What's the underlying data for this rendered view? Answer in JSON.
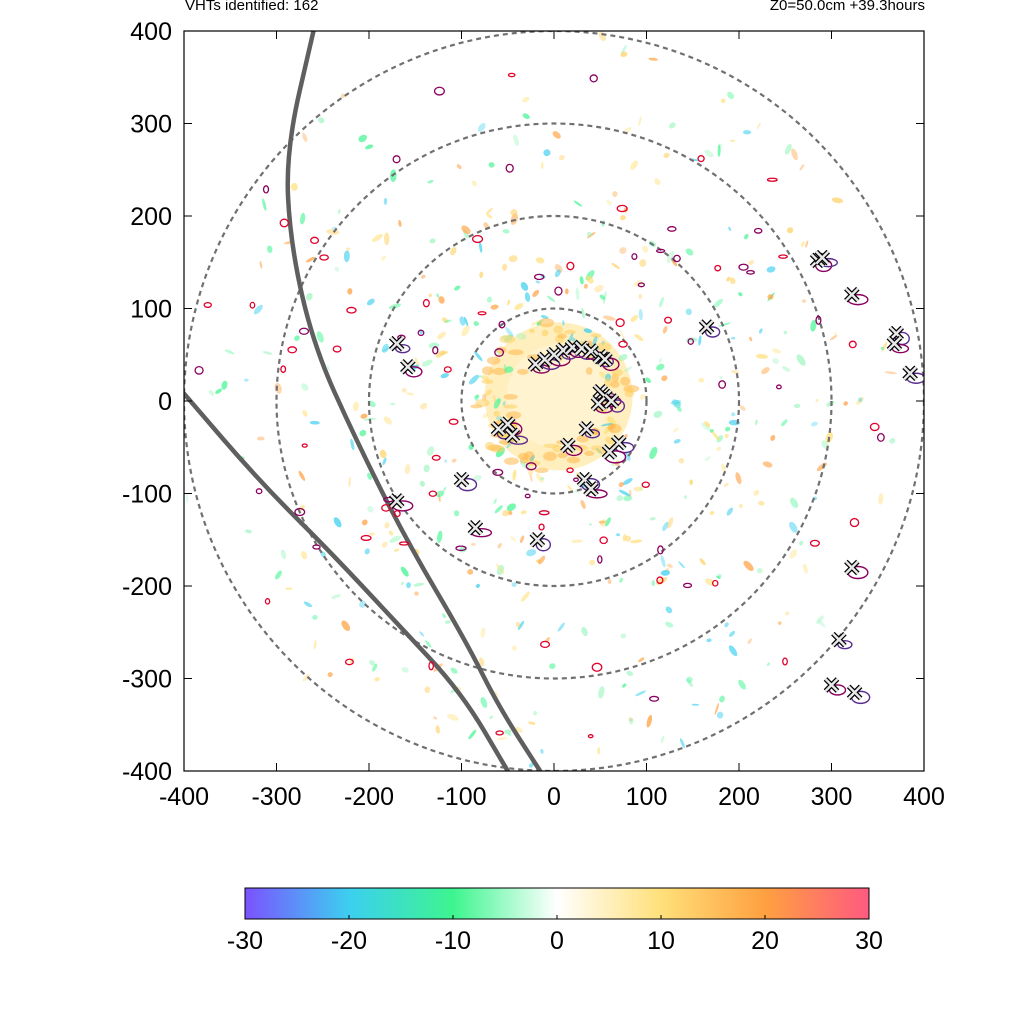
{
  "header": {
    "vht_count": "VHTs identified: 162",
    "run_info": "Z0=50.0cm  +39.3hours"
  },
  "chart_data": {
    "type": "scatter",
    "title": "",
    "xlabel": "",
    "ylabel": "",
    "xlim": [
      -400,
      400
    ],
    "ylim": [
      -400,
      400
    ],
    "grid": false,
    "x_ticks": [
      "-400",
      "-300",
      "-200",
      "-100",
      "0",
      "100",
      "200",
      "300",
      "400"
    ],
    "y_ticks": [
      "400",
      "300",
      "200",
      "100",
      "0",
      "-100",
      "-200",
      "-300",
      "-400"
    ],
    "range_rings_km": [
      100,
      200,
      300,
      400
    ],
    "colorbar": {
      "min": -30,
      "max": 30,
      "ticks": [
        "-30",
        "-20",
        "-10",
        "0",
        "10",
        "20",
        "30"
      ],
      "colors": [
        "#7b52ff",
        "#3ccff0",
        "#3df58f",
        "#ffffff",
        "#ffe07a",
        "#ffa040",
        "#ff5a80"
      ]
    },
    "colors": {
      "ring": "#707070",
      "flight_track": "#5f5f5f",
      "contour_outer": "#8b0060",
      "contour_inner": "#5a2d91",
      "marker": "#4a4a4a"
    },
    "vht_markers_sampled": [
      [
        -170,
        62
      ],
      [
        -158,
        37
      ],
      [
        -100,
        -85
      ],
      [
        -85,
        -137
      ],
      [
        -60,
        -30
      ],
      [
        -50,
        -25
      ],
      [
        -45,
        -37
      ],
      [
        -170,
        -108
      ],
      [
        -18,
        -150
      ],
      [
        -20,
        40
      ],
      [
        -10,
        45
      ],
      [
        0,
        50
      ],
      [
        10,
        55
      ],
      [
        20,
        58
      ],
      [
        30,
        57
      ],
      [
        40,
        54
      ],
      [
        50,
        48
      ],
      [
        55,
        45
      ],
      [
        50,
        10
      ],
      [
        55,
        5
      ],
      [
        62,
        0
      ],
      [
        48,
        -3
      ],
      [
        70,
        -45
      ],
      [
        60,
        -55
      ],
      [
        35,
        -30
      ],
      [
        15,
        -48
      ],
      [
        33,
        -85
      ],
      [
        40,
        -95
      ],
      [
        165,
        80
      ],
      [
        285,
        152
      ],
      [
        290,
        155
      ],
      [
        322,
        115
      ],
      [
        370,
        73
      ],
      [
        368,
        62
      ],
      [
        385,
        30
      ],
      [
        322,
        -180
      ],
      [
        308,
        -258
      ],
      [
        300,
        -307
      ],
      [
        325,
        -315
      ]
    ],
    "flight_tracks_sampled": [
      {
        "name": "",
        "points": [
          [
            -260,
            400
          ],
          [
            -290,
            270
          ],
          [
            -285,
            170
          ],
          [
            -260,
            60
          ],
          [
            -215,
            -40
          ],
          [
            -160,
            -150
          ],
          [
            -95,
            -260
          ],
          [
            -60,
            -330
          ],
          [
            -15,
            -400
          ]
        ]
      },
      {
        "name": "",
        "points": [
          [
            -400,
            8
          ],
          [
            -320,
            -85
          ],
          [
            -240,
            -165
          ],
          [
            -170,
            -240
          ],
          [
            -100,
            -315
          ],
          [
            -50,
            -400
          ]
        ]
      }
    ]
  }
}
